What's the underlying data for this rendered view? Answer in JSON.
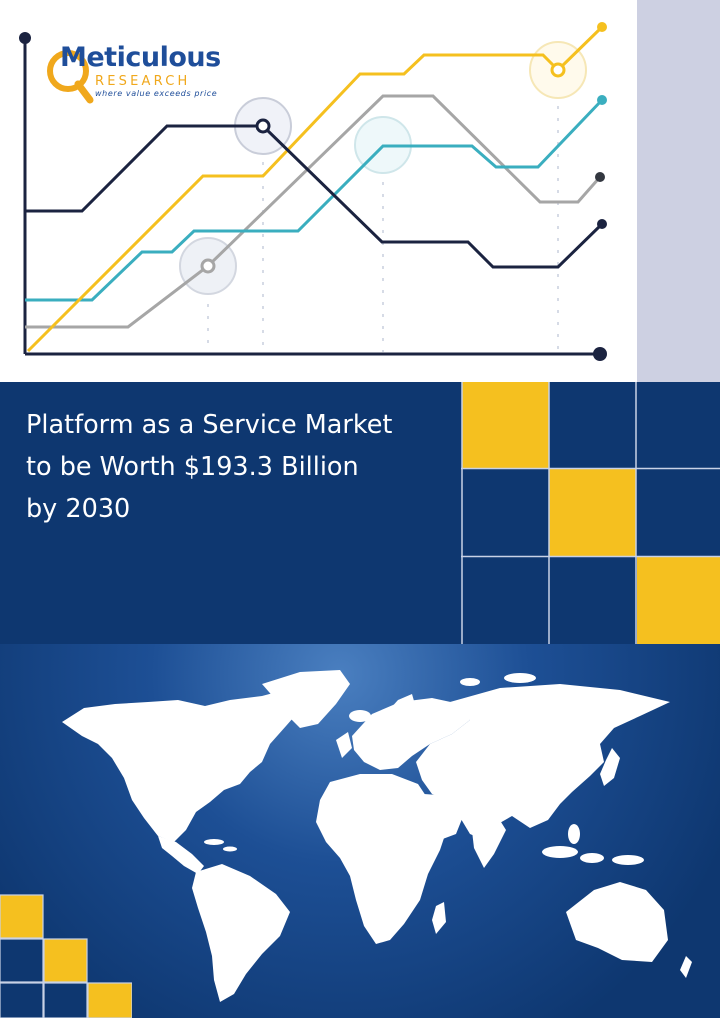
{
  "logo": {
    "brand": "Meticulous",
    "sub": "RESEARCH",
    "tagline": "where value exceeds price"
  },
  "headline": {
    "lines": [
      "Platform as a Service Market",
      "to be Worth $193.3 Billion",
      "by 2030"
    ]
  },
  "colors": {
    "navy": "#0e3770",
    "gold": "#f5c01f",
    "teal": "#3aaebf",
    "gray": "#a6a6a6",
    "dark_line": "#1b2340",
    "lavender": "#cdd0e2",
    "brand_blue": "#1f4e9a",
    "brand_orange": "#f0a81c"
  },
  "icons": {
    "map": "world-map-icon",
    "decor_chart": "line-chart-graphic"
  }
}
